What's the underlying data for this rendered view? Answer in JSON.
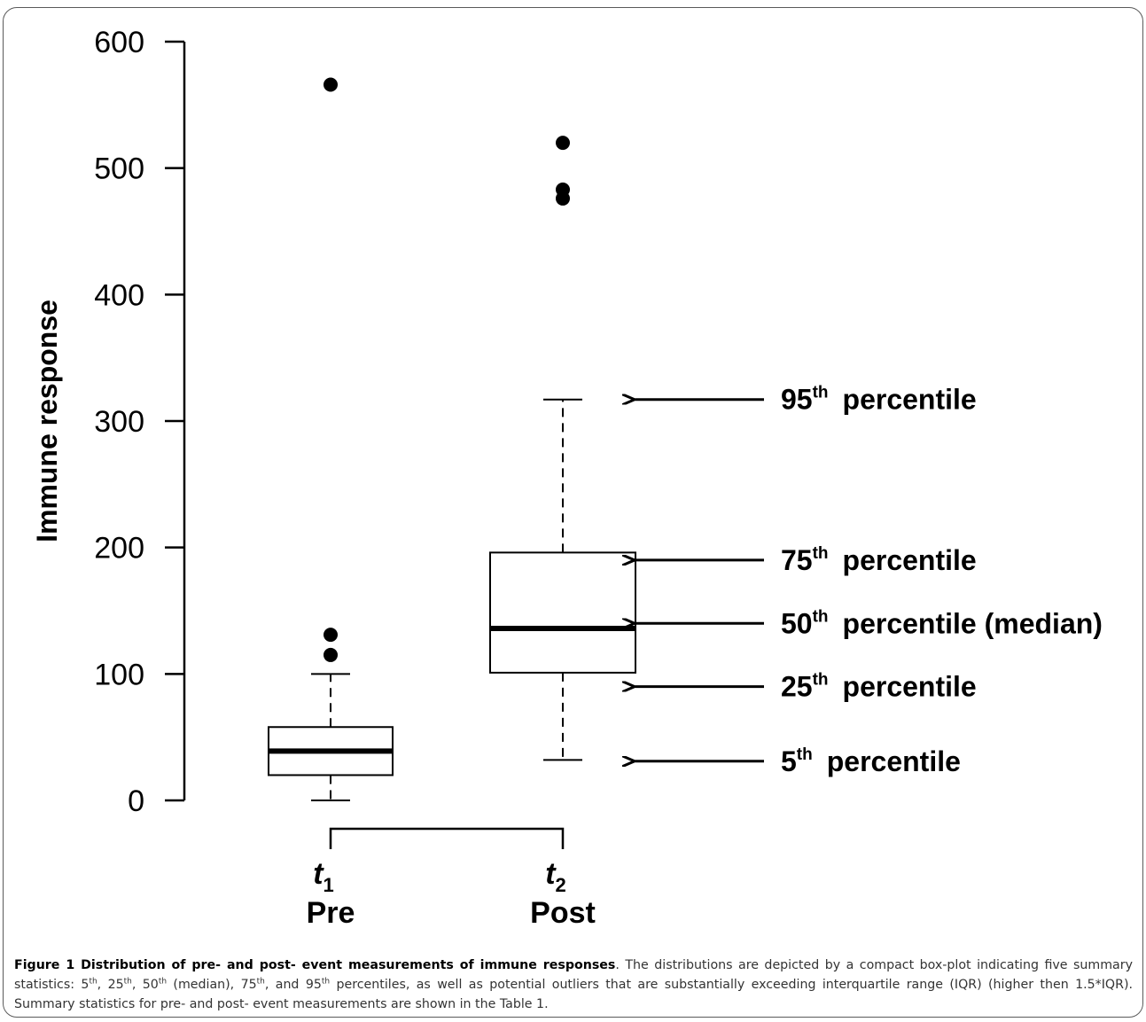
{
  "chart_data": {
    "type": "boxplot",
    "ylabel": "Immune response",
    "ylim": [
      0,
      600
    ],
    "yticks": [
      0,
      100,
      200,
      300,
      400,
      500,
      600
    ],
    "groups": [
      {
        "symbol": "t",
        "subscript": "1",
        "name": "Pre",
        "p5": 0,
        "p25": 20,
        "median": 39,
        "p75": 58,
        "p95": 100,
        "outliers": [
          115,
          131,
          566
        ]
      },
      {
        "symbol": "t",
        "subscript": "2",
        "name": "Post",
        "p5": 32,
        "p25": 101,
        "median": 136,
        "p75": 196,
        "p95": 317,
        "outliers": [
          476,
          483,
          520
        ]
      }
    ],
    "annotations": [
      {
        "num": "95",
        "sup": "th",
        "text": "percentile",
        "value": 317
      },
      {
        "num": "75",
        "sup": "th",
        "text": "percentile",
        "value": 190
      },
      {
        "num": "50",
        "sup": "th",
        "text": "percentile (median)",
        "value": 140
      },
      {
        "num": "25",
        "sup": "th",
        "text": "percentile",
        "value": 90
      },
      {
        "num": "5",
        "sup": "th",
        "text": "percentile",
        "value": 31
      }
    ]
  },
  "caption": {
    "title": "Figure 1 Distribution of pre- and post- event measurements of immune responses",
    "p1": ". The distributions are depicted by a compact box-plot indicating five summary statistics: 5",
    "s1": "th",
    "p2": ", 25",
    "s2": "th",
    "p3": ", 50",
    "s3": "th",
    "p4": " (median), 75",
    "s4": "th",
    "p5": ", and 95",
    "s5": "th",
    "p6": " percentiles, as well as potential outliers that are substantially exceeding interquartile range (IQR) (higher then 1.5*IQR). Summary statistics for pre- and post- event measurements are shown in the Table 1."
  }
}
